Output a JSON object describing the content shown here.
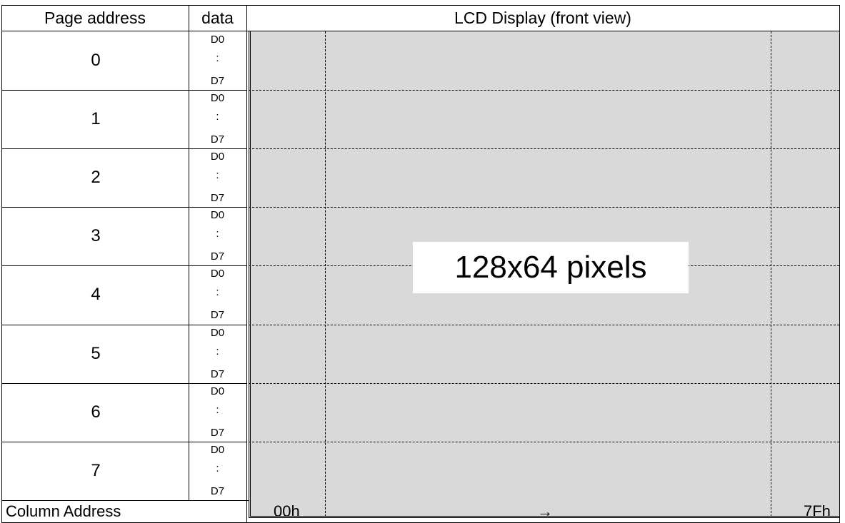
{
  "header": {
    "page_address": "Page address",
    "data": "data",
    "lcd_title": "LCD Display (front view)"
  },
  "pages": [
    {
      "num": "0",
      "d0": "D0",
      "colon": ":",
      "d7": "D7"
    },
    {
      "num": "1",
      "d0": "D0",
      "colon": ":",
      "d7": "D7"
    },
    {
      "num": "2",
      "d0": "D0",
      "colon": ":",
      "d7": "D7"
    },
    {
      "num": "3",
      "d0": "D0",
      "colon": ":",
      "d7": "D7"
    },
    {
      "num": "4",
      "d0": "D0",
      "colon": ":",
      "d7": "D7"
    },
    {
      "num": "5",
      "d0": "D0",
      "colon": ":",
      "d7": "D7"
    },
    {
      "num": "6",
      "d0": "D0",
      "colon": ":",
      "d7": "D7"
    },
    {
      "num": "7",
      "d0": "D0",
      "colon": ":",
      "d7": "D7"
    }
  ],
  "lcd": {
    "resolution_label": "128x64 pixels"
  },
  "footer": {
    "column_address": "Column Address",
    "start": "00h",
    "arrow": "→",
    "end": "7Fh"
  },
  "colors": {
    "lcd_fill": "#d9d9d9",
    "lines": "#000000",
    "label_box": "#ffffff"
  }
}
